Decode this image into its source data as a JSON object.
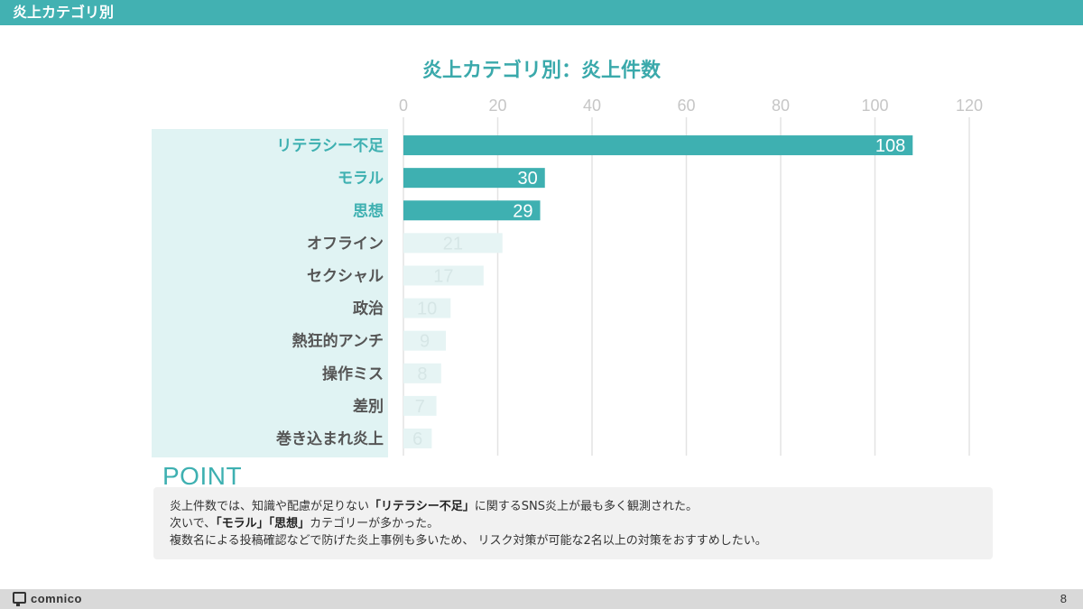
{
  "header": {
    "title": "炎上カテゴリ別"
  },
  "chart_data": {
    "type": "bar",
    "orientation": "horizontal",
    "title": "炎上カテゴリ別：炎上件数",
    "categories": [
      "リテラシー不足",
      "モラル",
      "思想",
      "オフライン",
      "セクシャル",
      "政治",
      "熱狂的アンチ",
      "操作ミス",
      "差別",
      "巻き込まれ炎上"
    ],
    "values": [
      108,
      30,
      29,
      21,
      17,
      10,
      9,
      8,
      7,
      6
    ],
    "highlighted": [
      true,
      true,
      true,
      false,
      false,
      false,
      false,
      false,
      false,
      false
    ],
    "xlim": [
      0,
      120
    ],
    "xticks": [
      0,
      20,
      40,
      60,
      80,
      100,
      120
    ],
    "axis_position": "top",
    "grid": true,
    "data_labels": true,
    "colors": {
      "highlight_bar": "#3eb0b1",
      "muted_bar": "#e6f4f4",
      "highlight_text": "#3eb0b1",
      "muted_text": "#555555",
      "label_panel": "#e0f3f3",
      "grid": "#e3e3e3",
      "tick_text": "#c6c6c6"
    }
  },
  "point": {
    "title": "POINT",
    "line1": {
      "a": "炎上件数では、知識や配慮が足りない",
      "b": "「リテラシー不足」",
      "c": "に関するSNS炎上が最も多く観測された。"
    },
    "line2": {
      "a": "次いで、",
      "b1": "「モラル」",
      "sep": "",
      "b2": "「思想」",
      "c": "カテゴリーが多かった。"
    },
    "line3": {
      "a": "複数名による投稿確認などで防げた炎上事例も多いため、 リスク対策が可能な2名以上の対策をおすすめしたい。"
    }
  },
  "footer": {
    "logo": "comnico",
    "page": "8"
  }
}
